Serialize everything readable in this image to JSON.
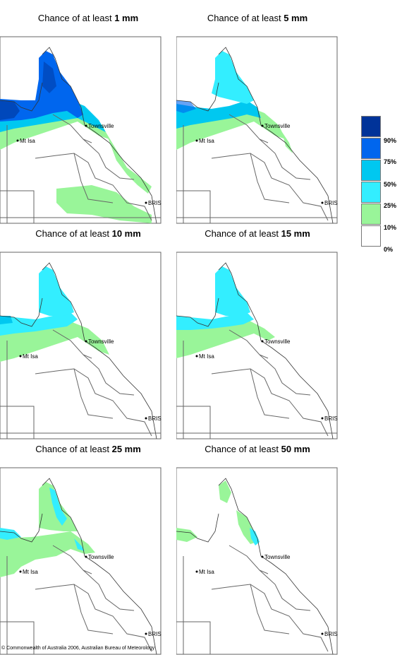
{
  "panels": [
    {
      "title_prefix": "Chance of at least ",
      "threshold": "1 mm"
    },
    {
      "title_prefix": "Chance of at least ",
      "threshold": "5 mm"
    },
    {
      "title_prefix": "Chance of at least ",
      "threshold": "10 mm"
    },
    {
      "title_prefix": "Chance of at least ",
      "threshold": "15 mm"
    },
    {
      "title_prefix": "Chance of at least ",
      "threshold": "25 mm"
    },
    {
      "title_prefix": "Chance of at least ",
      "threshold": "50 mm"
    }
  ],
  "map_labels": {
    "townsville": "Townsville",
    "mt_isa": "Mt Isa",
    "brisbane": "BRIS"
  },
  "legend": {
    "bands": [
      {
        "color": "#003399",
        "label": "90%"
      },
      {
        "color": "#0066ee",
        "label": "75%"
      },
      {
        "color": "#00c8f0",
        "label": "50%"
      },
      {
        "color": "#33eeff",
        "label": "25%"
      },
      {
        "color": "#99f599",
        "label": "10%"
      },
      {
        "color": "#ffffff",
        "label": "0%"
      }
    ]
  },
  "colors": {
    "band_90": "#003399",
    "band_75": "#0066ee",
    "band_50": "#00c8f0",
    "band_25": "#33eeff",
    "band_10": "#99f599",
    "background": "#ffffff",
    "border": "#555555"
  },
  "copyright": "© Commonwealth of Australia 2006, Australian Bureau of Meteorology"
}
